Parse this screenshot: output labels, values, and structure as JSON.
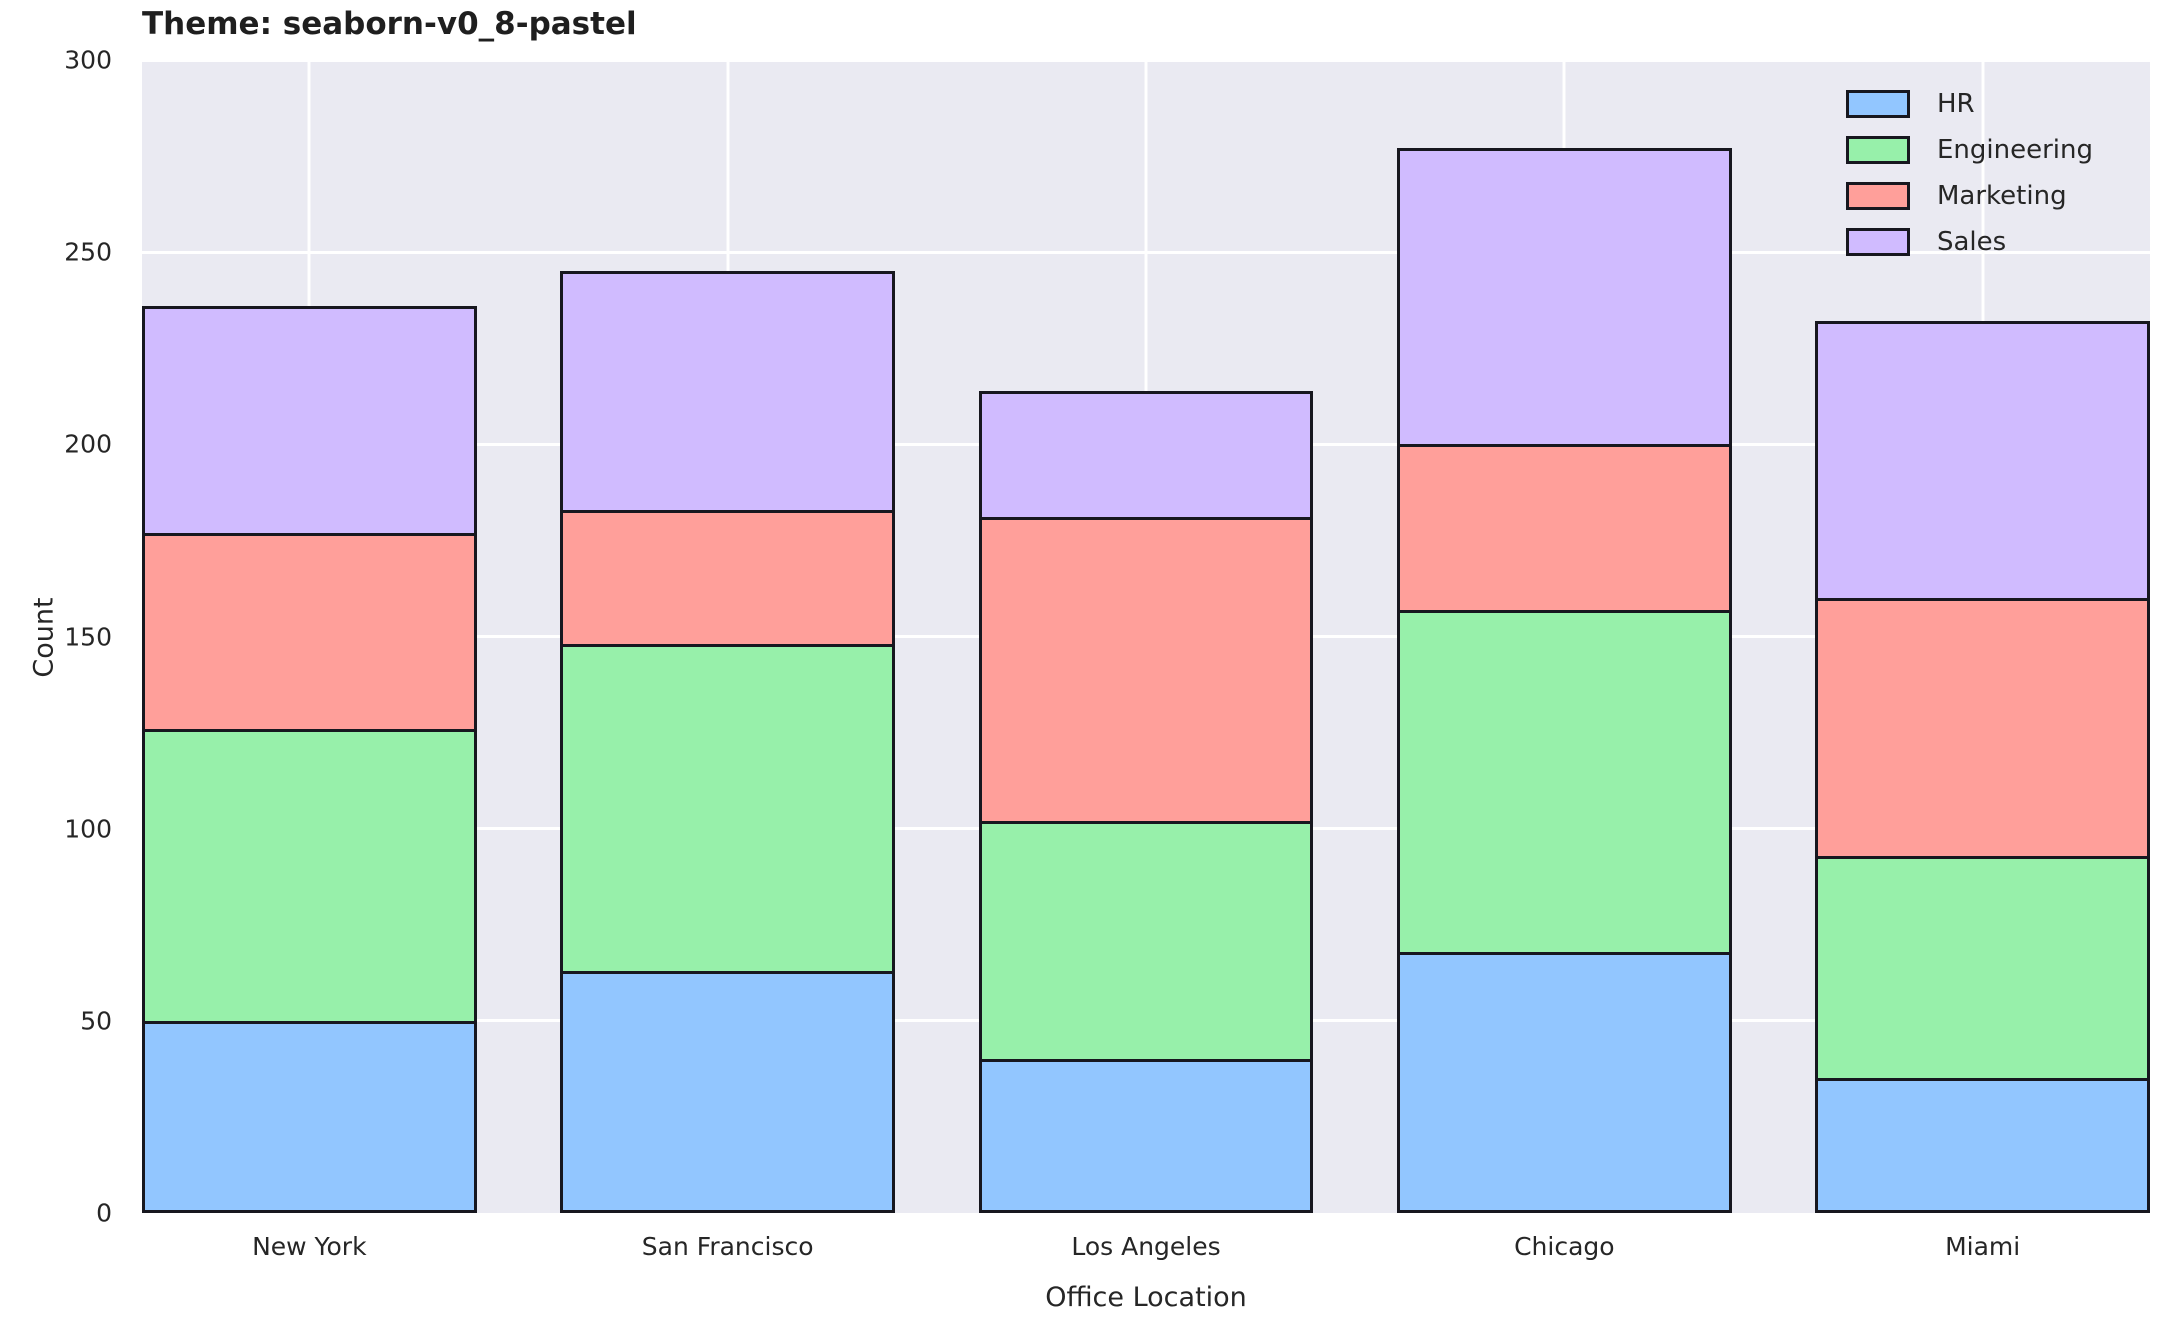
{
  "title": "Theme: seaborn-v0_8-pastel",
  "chart_data": {
    "type": "bar",
    "stacked": true,
    "title": "Theme: seaborn-v0_8-pastel",
    "xlabel": "Office Location",
    "ylabel": "Count",
    "categories": [
      "New York",
      "San Francisco",
      "Los Angeles",
      "Chicago",
      "Miami"
    ],
    "series": [
      {
        "name": "HR",
        "color": "#92C6FF",
        "values": [
          50,
          63,
          40,
          68,
          35
        ]
      },
      {
        "name": "Engineering",
        "color": "#97F0AA",
        "values": [
          76,
          85,
          62,
          89,
          58
        ]
      },
      {
        "name": "Marketing",
        "color": "#FF9F9A",
        "values": [
          51,
          35,
          79,
          43,
          67
        ]
      },
      {
        "name": "Sales",
        "color": "#D0BBFF",
        "values": [
          59,
          62,
          33,
          77,
          72
        ]
      }
    ],
    "stack_totals": [
      236,
      245,
      214,
      277,
      232
    ],
    "ylim": [
      0,
      300
    ],
    "yticks": [
      0,
      50,
      100,
      150,
      200,
      250,
      300
    ],
    "grid": true,
    "legend_position": "upper right",
    "colors": {
      "axes_background": "#EAEAF2",
      "gridline": "#FFFFFF",
      "bar_edge": "#17171f",
      "text": "#262626",
      "figure_background": "#FFFFFF"
    }
  }
}
